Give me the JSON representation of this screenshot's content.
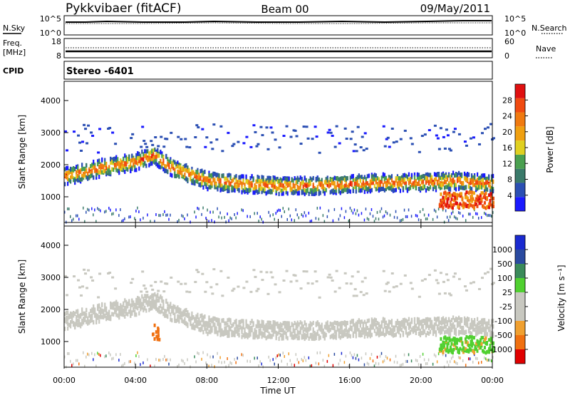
{
  "header": {
    "station": "Pykkvibaer (fitACF)",
    "beam": "Beam 00",
    "date": "09/May/2011"
  },
  "panels": {
    "nsky": {
      "left_label": "N.Sky",
      "left_ticks": [
        "10^5",
        "10^0"
      ],
      "right_label": "N.Search",
      "right_ticks": [
        "10^5",
        "10^0"
      ]
    },
    "freq": {
      "left_label_1": "Freq.",
      "left_label_2": "[MHz]",
      "left_ticks": [
        "18",
        "8"
      ],
      "right_label": "Nave",
      "right_ticks": [
        "60",
        "0"
      ]
    },
    "cpid": {
      "label": "CPID",
      "mode": "Stereo -6401"
    }
  },
  "colors": {
    "power": [
      "#1a1aff",
      "#2b4fb3",
      "#3a7a6a",
      "#4aa050",
      "#e0d020",
      "#f0a010",
      "#f07a10",
      "#f04a10",
      "#e01010"
    ],
    "velocity": [
      "#e00000",
      "#f07010",
      "#f0a030",
      "#c8c8c0",
      "#c8c8c0",
      "#50d030",
      "#3a8a5a",
      "#2a4aa0",
      "#1a2ad0"
    ],
    "gray": "#c8c8c0"
  },
  "chart_data": [
    {
      "type": "heatmap",
      "name": "power-panel",
      "x_ticks": [
        "00:00",
        "04:00",
        "08:00",
        "12:00",
        "16:00",
        "20:00",
        "00:00"
      ],
      "xlim_hours": [
        0,
        24
      ],
      "ylabel": "Slant Range [km]",
      "y_ticks": [
        1000,
        2000,
        3000,
        4000
      ],
      "ylim": [
        200,
        4600
      ],
      "colorbar_label": "Power [dB]",
      "colorbar_ticks": [
        4,
        8,
        12,
        16,
        20,
        24,
        28
      ],
      "features": [
        {
          "desc": "strong echo band",
          "x_hours": [
            0,
            1,
            2,
            3,
            4,
            5,
            6,
            8,
            10,
            12,
            14,
            16,
            18,
            20,
            22,
            24
          ],
          "range_km": [
            1650,
            1750,
            1900,
            2000,
            2100,
            2300,
            1900,
            1500,
            1400,
            1350,
            1350,
            1400,
            1450,
            1450,
            1500,
            1400
          ]
        }
      ]
    },
    {
      "type": "heatmap",
      "name": "velocity-panel",
      "x_ticks": [
        "00:00",
        "04:00",
        "08:00",
        "12:00",
        "16:00",
        "20:00",
        "00:00"
      ],
      "xlim_hours": [
        0,
        24
      ],
      "xlabel": "Time UT",
      "ylabel": "Slant Range [km]",
      "y_ticks": [
        1000,
        2000,
        3000,
        4000
      ],
      "ylim": [
        200,
        4600
      ],
      "colorbar_label": "Velocity [m s⁻¹]",
      "colorbar_ticks": [
        1000,
        500,
        100,
        25,
        -25,
        -100,
        -500,
        -1000
      ]
    }
  ]
}
